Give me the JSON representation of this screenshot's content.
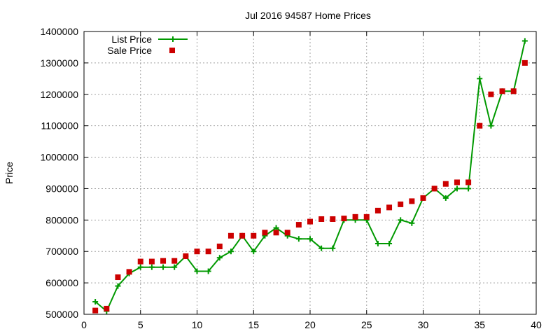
{
  "chart_data": {
    "type": "line",
    "title": "Jul 2016 94587 Home Prices",
    "xlabel": "",
    "ylabel": "Price",
    "xlim": [
      0,
      40
    ],
    "ylim": [
      500000,
      1400000
    ],
    "x_ticks": [
      0,
      5,
      10,
      15,
      20,
      25,
      30,
      35,
      40
    ],
    "y_ticks": [
      500000,
      600000,
      700000,
      800000,
      900000,
      1000000,
      1100000,
      1200000,
      1300000,
      1400000
    ],
    "grid": true,
    "legend_position": "top-left",
    "series": [
      {
        "name": "List Price",
        "style": "line-plus",
        "color": "#009900",
        "x": [
          1,
          2,
          3,
          4,
          5,
          6,
          7,
          8,
          9,
          10,
          11,
          12,
          13,
          14,
          15,
          16,
          17,
          18,
          19,
          20,
          21,
          22,
          23,
          24,
          25,
          26,
          27,
          28,
          29,
          30,
          31,
          32,
          33,
          34,
          35,
          36,
          37,
          38,
          39
        ],
        "values": [
          540000,
          510000,
          590000,
          630000,
          650000,
          650000,
          650000,
          650000,
          685000,
          637000,
          637000,
          680000,
          700000,
          750000,
          700000,
          750000,
          775000,
          750000,
          740000,
          740000,
          710000,
          710000,
          800000,
          800000,
          800000,
          725000,
          725000,
          800000,
          790000,
          870000,
          900000,
          870000,
          900000,
          900000,
          1250000,
          1100000,
          1210000,
          1210000,
          1370000
        ]
      },
      {
        "name": "Sale Price",
        "style": "square",
        "color": "#cc0000",
        "x": [
          1,
          2,
          3,
          4,
          5,
          6,
          7,
          8,
          9,
          10,
          11,
          12,
          13,
          14,
          15,
          16,
          17,
          18,
          19,
          20,
          21,
          22,
          23,
          24,
          25,
          26,
          27,
          28,
          29,
          30,
          31,
          32,
          33,
          34,
          35,
          36,
          37,
          38,
          39
        ],
        "values": [
          512000,
          518000,
          618000,
          635000,
          668000,
          668000,
          670000,
          670000,
          685000,
          700000,
          700000,
          716000,
          750000,
          750000,
          750000,
          760000,
          760000,
          760000,
          785000,
          795000,
          803000,
          803000,
          805000,
          810000,
          810000,
          830000,
          840000,
          850000,
          860000,
          870000,
          900000,
          915000,
          920000,
          920000,
          1100000,
          1200000,
          1210000,
          1210000,
          1300000
        ]
      }
    ]
  }
}
